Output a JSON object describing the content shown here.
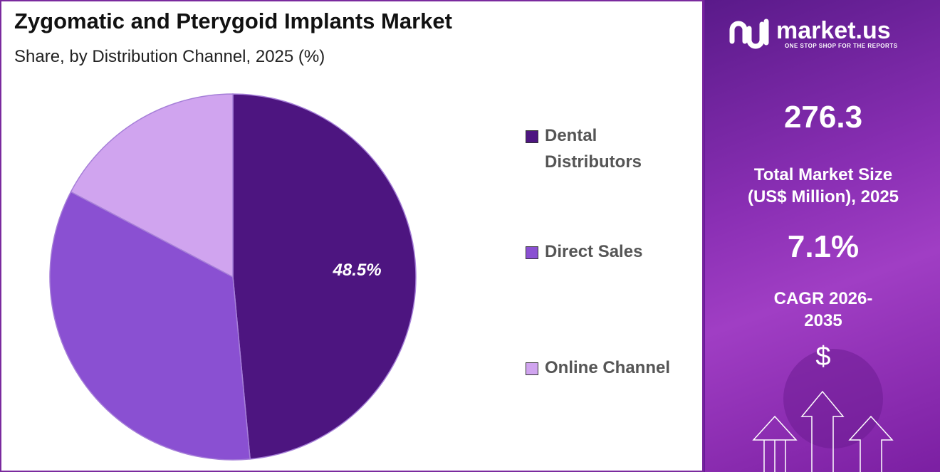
{
  "chart_data": {
    "type": "pie",
    "title": "Zygomatic and Pterygoid Implants Market",
    "subtitle": "Share, by Distribution Channel, 2025 (%)",
    "categories": [
      "Dental Distributors",
      "Direct Sales",
      "Online Channel"
    ],
    "values": [
      48.5,
      34.2,
      17.3
    ],
    "value_labels": [
      "48.5%",
      null,
      null
    ],
    "colors": [
      "#4d1580",
      "#8a50d2",
      "#d0a4ef"
    ]
  },
  "panel": {
    "logo": "market.us",
    "tagline": "ONE STOP SHOP FOR THE REPORTS",
    "market_size_value": "276.3",
    "market_size_label": "Total Market Size (US$ Million), 2025",
    "cagr_value": "7.1%",
    "cagr_label": "CAGR 2026-2035",
    "currency_symbol": "$"
  }
}
